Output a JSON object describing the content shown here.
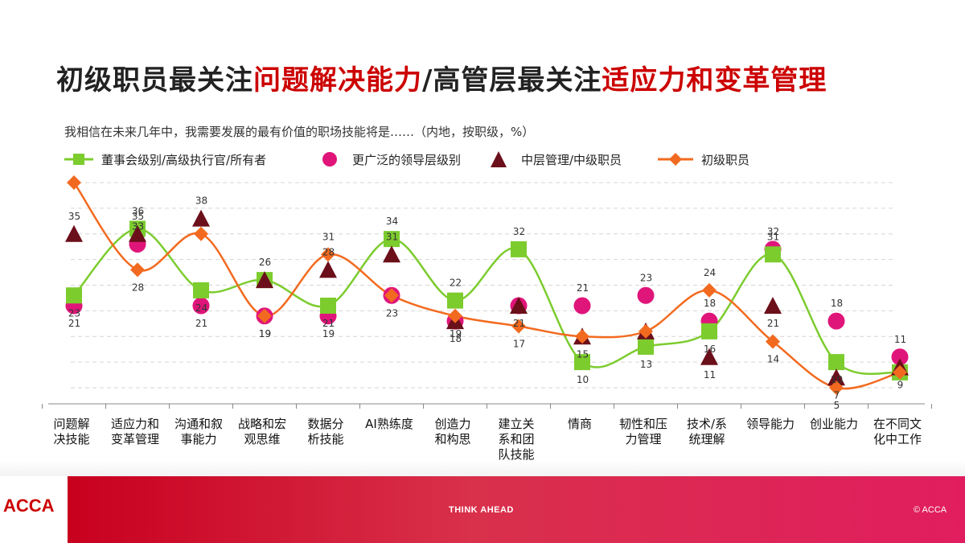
{
  "title": {
    "part1": "初级职员最关注",
    "part2": "问题解决能力",
    "part3": "/高管层最关注",
    "part4": "适应力和变革管理"
  },
  "subtitle": "我相信在未来几年中，我需要发展的最有价值的职场技能将是……（内地，按职级，%）",
  "colors": {
    "series1": "#7ccc2e",
    "series2": "#e0157a",
    "series3": "#6b0f1a",
    "series4": "#f26a1f",
    "title_accent": "#cc0000",
    "grid": "#d6d6d6"
  },
  "chart_data": {
    "type": "line",
    "categories": [
      [
        "问题解",
        "决技能"
      ],
      [
        "适应力和",
        "变革管理"
      ],
      [
        "沟通和叙",
        "事能力"
      ],
      [
        "战略和宏",
        "观思维"
      ],
      [
        "数据分",
        "析技能"
      ],
      [
        "AI熟练度"
      ],
      [
        "创造力",
        "和构思"
      ],
      [
        "建立关",
        "系和团",
        "队技能"
      ],
      [
        "情商"
      ],
      [
        "韧性和压",
        "力管理"
      ],
      [
        "技术/系",
        "统理解"
      ],
      [
        "领导能力"
      ],
      [
        "创业能力"
      ],
      [
        "在不同文",
        "化中工作"
      ]
    ],
    "series": [
      {
        "name": "董事会级别/高级执行官/所有者",
        "marker": "square",
        "line": true,
        "values": [
          23,
          36,
          24,
          26,
          21,
          34,
          22,
          32,
          10,
          13,
          16,
          31,
          10,
          8
        ],
        "labels": [
          "23",
          "36",
          "24",
          "26",
          "21",
          "34",
          "22",
          "32",
          "10",
          "13",
          "16",
          "31",
          "10",
          ""
        ]
      },
      {
        "name": "更广泛的领导层级别",
        "marker": "circle",
        "line": false,
        "values": [
          21,
          33,
          21,
          19,
          19,
          23,
          18,
          21,
          21,
          23,
          18,
          32,
          18,
          11
        ],
        "labels": [
          "21",
          "33",
          "21",
          "19",
          "19",
          "23",
          "18",
          "21",
          "21",
          "23",
          "18",
          "32",
          "18",
          "11"
        ]
      },
      {
        "name": "中层管理/中级职员",
        "marker": "triangle",
        "line": false,
        "values": [
          35,
          35,
          38,
          26,
          28,
          31,
          18,
          21,
          15,
          16,
          11,
          21,
          7,
          9
        ],
        "labels": [
          "35",
          "35",
          "38",
          "",
          "28",
          "31",
          "",
          "",
          "15",
          "",
          "11",
          "21",
          "7",
          "9"
        ]
      },
      {
        "name": "初级职员",
        "marker": "diamond",
        "line": true,
        "values": [
          45,
          28,
          35,
          19,
          31,
          23,
          19,
          17,
          15,
          16,
          24,
          14,
          5,
          8
        ],
        "labels": [
          "45",
          "28",
          "",
          "19",
          "31",
          "",
          "19",
          "17",
          "",
          "",
          "24",
          "14",
          "5",
          ""
        ]
      }
    ],
    "ylim": [
      5,
      45
    ],
    "grid": true,
    "legend": "top"
  },
  "footer": {
    "logo": "ACCA",
    "tagline": "THINK AHEAD",
    "copyright": "© ACCA"
  }
}
